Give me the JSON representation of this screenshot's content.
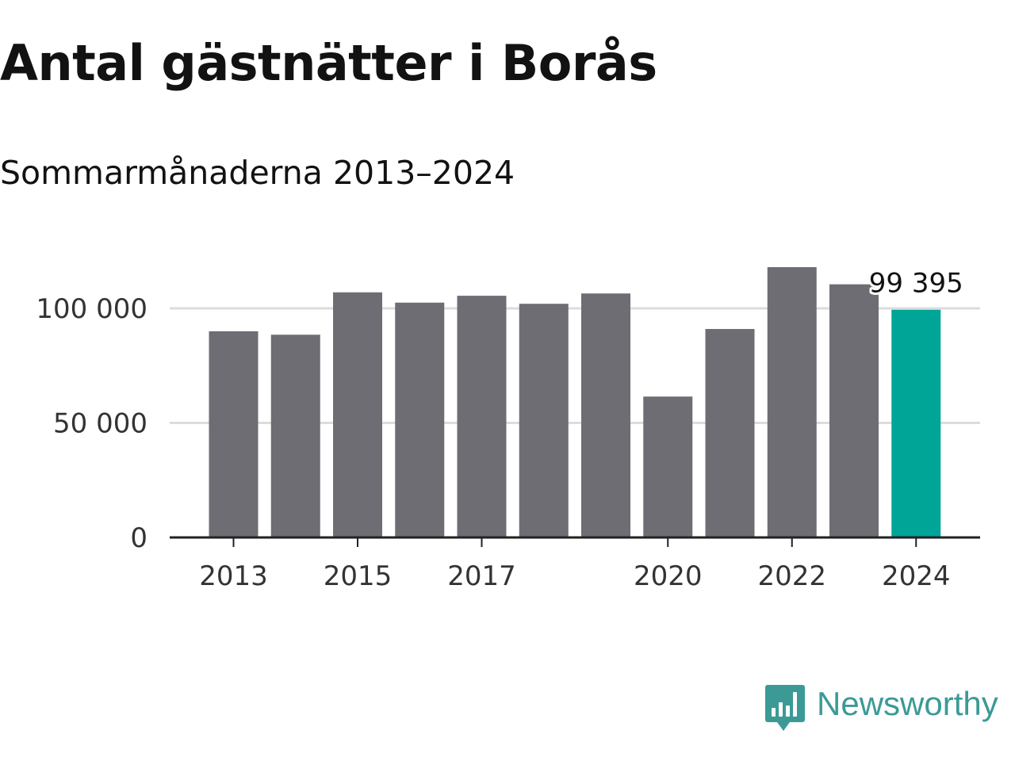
{
  "header": {
    "title": "Antal gästnätter i Borås",
    "subtitle": "Sommarmånaderna 2013–2024"
  },
  "chart_data": {
    "type": "bar",
    "title": "Antal gästnätter i Borås",
    "subtitle": "Sommarmånaderna 2013–2024",
    "xlabel": "",
    "ylabel": "",
    "categories": [
      "2013",
      "2014",
      "2015",
      "2016",
      "2017",
      "2018",
      "2019",
      "2020",
      "2021",
      "2022",
      "2023",
      "2024"
    ],
    "values": [
      90000,
      88500,
      107000,
      102500,
      105500,
      102000,
      106500,
      61500,
      91000,
      118000,
      110500,
      99395
    ],
    "ylim": [
      0,
      120000
    ],
    "yticks": [
      0,
      50000,
      100000
    ],
    "ytick_labels": [
      "0",
      "50 000",
      "100 000"
    ],
    "xtick_labels": [
      "2013",
      "2015",
      "2017",
      "2020",
      "2022",
      "2024"
    ],
    "grid": true,
    "colors": {
      "bar": "#6e6d73",
      "highlight": "#00a598",
      "grid": "#dcdcdc",
      "axis": "#222222"
    },
    "highlight_index": 11,
    "annotations": [
      {
        "category": "2024",
        "text": "99 395"
      }
    ]
  },
  "branding": {
    "name": "Newsworthy",
    "color": "#3b9a96",
    "icon": "newsworthy-chart-bubble-icon"
  }
}
